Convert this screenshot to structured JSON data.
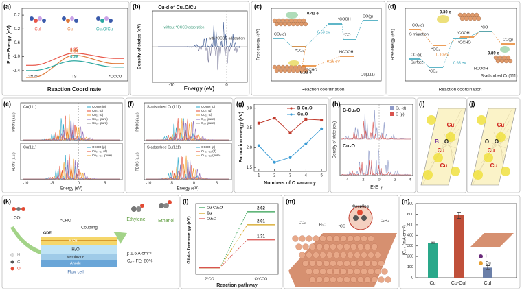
{
  "chart_data": [
    {
      "type": "energy_profile",
      "ylabel": "Free Energy (eV)",
      "xlabel": "Reaction Coordinate",
      "categories": [
        "2*CO",
        "TS",
        "*OCCO"
      ],
      "ylim": [
        -1.7,
        0.4
      ],
      "yticks": [
        0.2,
        -0.2,
        -0.6,
        {
          "value": -1,
          "label": "-1.0"
        },
        -1.4
      ],
      "series": [
        {
          "name": "CuI",
          "color": "#e8574a",
          "values": [
            -1.25,
            -0.9,
            -1.05
          ],
          "barrier": 0.35
        },
        {
          "name": "Cu",
          "color": "#e07a3a",
          "values": [
            -1.6,
            -0.96,
            -1.2
          ],
          "barrier": 0.64
        },
        {
          "name": "Cu₂O/Cu",
          "color": "#2aa7a0",
          "values": [
            -1.4,
            -1.12,
            -1.3
          ],
          "barrier": 0.28
        }
      ]
    },
    {
      "type": "line",
      "xlabel": "Numbers of O vacancy",
      "ylabel": "Formation energy (eV)",
      "x": [
        1,
        2,
        3,
        4,
        5
      ],
      "xlim": [
        0.7,
        5.3
      ],
      "xticks": [
        1,
        2,
        3,
        4,
        5
      ],
      "ylim": [
        1.4,
        3.1
      ],
      "yticks": [
        1.5,
        {
          "value": 2,
          "label": "2.0"
        },
        2.5,
        {
          "value": 3,
          "label": "3.0"
        }
      ],
      "series": [
        {
          "name": "B-Cu₂O",
          "color": "#c0392b",
          "marker": "square",
          "values": [
            2.62,
            2.75,
            2.38,
            2.72,
            2.7
          ]
        },
        {
          "name": "Cu₂O",
          "color": "#3a9bd5",
          "marker": "circle",
          "values": [
            2.05,
            1.63,
            1.75,
            2.1,
            2.48
          ]
        }
      ]
    },
    {
      "type": "energy_steps",
      "ylabel": "Gibbs free energy (eV)",
      "xlabel": "Reaction pathway",
      "categories": [
        "2*CO",
        "O*CCO"
      ],
      "ylim": [
        -0.3,
        3.0
      ],
      "series": [
        {
          "name": "Cu-Cu₂O",
          "color": "#2e9e4f",
          "values": [
            0,
            2.62
          ]
        },
        {
          "name": "Cu",
          "color": "#d4a017",
          "values": [
            0,
            2.01
          ]
        },
        {
          "name": "Cu₂O",
          "color": "#d9534f",
          "values": [
            0,
            1.31
          ]
        }
      ]
    },
    {
      "type": "bar",
      "ylabel": "jC₂₊ (mA cm⁻²)",
      "categories": [
        "Cu",
        "Cu-CuI",
        "CuI"
      ],
      "values": [
        330,
        590,
        95
      ],
      "errors": [
        6,
        30,
        18
      ],
      "colors": [
        "#2aa88a",
        "#c0503a",
        "#6b7fa8"
      ],
      "ylim": [
        0,
        700
      ],
      "yticks": [
        0,
        100,
        200,
        300,
        400,
        500,
        600,
        700
      ]
    }
  ],
  "figure": {
    "labels": [
      "(a)",
      "(b)",
      "(c)",
      "(d)",
      "(e)",
      "(f)",
      "(g)",
      "(h)",
      "(i)",
      "(j)",
      "(k)",
      "(l)",
      "(m)",
      "(n)"
    ],
    "b": [
      "Cu-d of Cu₂O/Cu",
      "Density of states (eV)",
      "Energy (eV)",
      "-10",
      "0",
      "without *OCCO adsorption",
      "with *OCCO adsorption"
    ],
    "c": [
      "0.41 e",
      "0.03 e",
      "CO₂(g)",
      "*CO₂",
      "*COOH",
      "*CO",
      "CO(g)",
      "*OCHO",
      "HCOOH",
      "0.53 eV",
      "0.26 eV",
      "Cu(111)",
      "Free energy (eV)",
      "Reaction coordination"
    ],
    "d": [
      "0.30 e",
      "0.89 e",
      "CO₂(g)",
      "S migration",
      "*CO₂",
      "0.10 eV",
      "*COOH",
      "*OCHO",
      "*CO",
      "CO(g)",
      "0.65 eV",
      "HCOOH",
      "CO₂(g)",
      "Surface",
      "*CO₂",
      "S-adsorbed Cu(111)",
      "Free energy (eV)",
      "Reaction coordination"
    ],
    "e": [
      "Cu(111)",
      "COOH (p)",
      "Cu₃₉ (d)",
      "Cu₃₂ (d)",
      "Cu₃₈ (pure)",
      "Cu₃₉ (pure)",
      "Cu(111)",
      "OCHO (p)",
      "Cu₃₇₊₃₂ (d)",
      "Cu₃₉₊₃₈ (pure)",
      "PDOS (a.u.)",
      "PDOS (a.u.)",
      "Energy (eV)",
      "-10",
      "-5",
      "0",
      "5"
    ],
    "f": [
      "S-adsorbed Cu(111)",
      "COOH (p)",
      "Cu₃₁ (d)",
      "Cu₃₂ (d)",
      "S₃₃ (pure)",
      "S₃₄ (pure)",
      "S-adsorbed Cu(111)",
      "OCHO (p)",
      "Cu₃₁₊₃₂ (d)",
      "Cu₃₁₊₃₂ (pure)",
      "PDOS (a.u.)",
      "PDOS (a.u.)",
      "Energy (eV)",
      "-10",
      "-5",
      "0",
      "5"
    ],
    "h": [
      "B-Cu₂O",
      "Cu₂O",
      "Cu (d)",
      "O (p)",
      "Density of state (eV)",
      "E-E",
      "f",
      "-4",
      "-2",
      "0",
      "2",
      "4"
    ],
    "i": [
      "Cu",
      "B",
      "O",
      "Cu",
      "Cu"
    ],
    "j": [
      "Cu",
      "O",
      "O",
      "Cu",
      "Cu"
    ],
    "k": [
      "CO₂",
      "*CHO",
      "Coupling",
      "Ethylene",
      "Ethanol",
      "GDE",
      "F-Cu",
      "H₂O",
      "Membrane",
      "Anode",
      "Flow cell",
      "j: 1.6 A cm⁻²",
      "C₂₊ FE: 80%",
      "H",
      "C",
      "O"
    ],
    "m": [
      "Coupling",
      "CO₂",
      "H₂O",
      "*CO",
      "C₂H₄"
    ],
    "n": [
      "I",
      "Cu"
    ]
  }
}
